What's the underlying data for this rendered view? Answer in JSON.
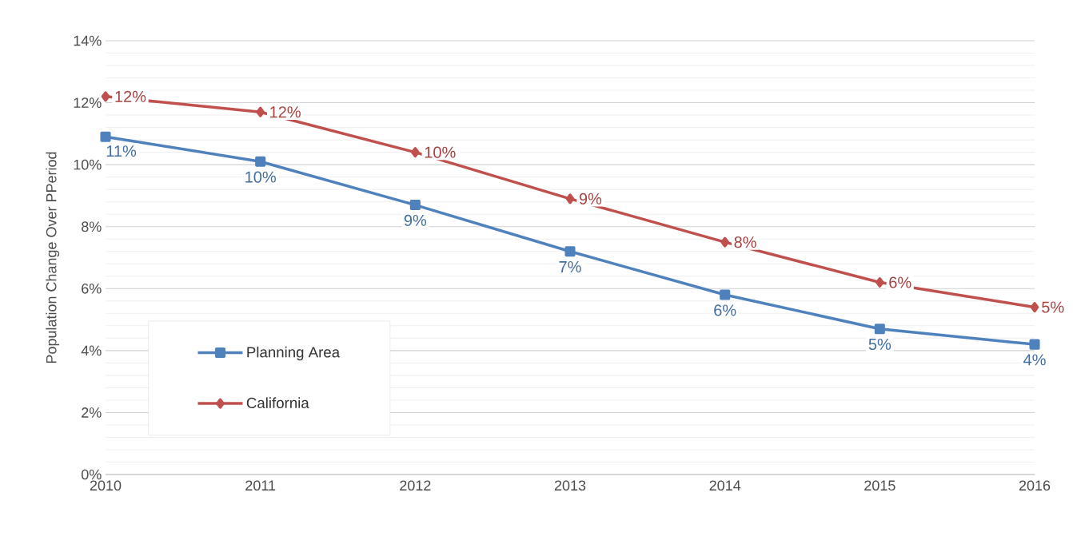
{
  "chart_data": {
    "type": "line",
    "ylabel": "Population Change Over PPeriod",
    "x": [
      2010,
      2011,
      2012,
      2013,
      2014,
      2015,
      2016
    ],
    "xlim": [
      2010,
      2016
    ],
    "xticks": [
      2010,
      2011,
      2012,
      2013,
      2014,
      2015,
      2016
    ],
    "ylim": [
      0,
      14
    ],
    "yticks": [
      {
        "value": 0,
        "label": "0%"
      },
      {
        "value": 2,
        "label": "2%"
      },
      {
        "value": 4,
        "label": "4%"
      },
      {
        "value": 6,
        "label": "6%"
      },
      {
        "value": 8,
        "label": "8%"
      },
      {
        "value": 10,
        "label": "10%"
      },
      {
        "value": 12,
        "label": "12%"
      },
      {
        "value": 14,
        "label": "14%"
      }
    ],
    "grid": "y",
    "legend": "bottom left",
    "line_style": "solid",
    "series": [
      {
        "name": "Planning Area",
        "color": "#4f81bd",
        "marker": "square",
        "values": [
          10.9,
          10.1,
          8.7,
          7.2,
          5.8,
          4.7,
          4.2
        ],
        "value_labels": [
          "11%",
          "10%",
          "9%",
          "7%",
          "6%",
          "5%",
          "4%"
        ]
      },
      {
        "name": "California",
        "color": "#c0504d",
        "marker": "diamond",
        "values": [
          12.2,
          11.7,
          10.4,
          8.9,
          7.5,
          6.2,
          5.4
        ],
        "value_labels": [
          "12%",
          "12%",
          "10%",
          "9%",
          "8%",
          "6%",
          "5%"
        ]
      }
    ]
  }
}
